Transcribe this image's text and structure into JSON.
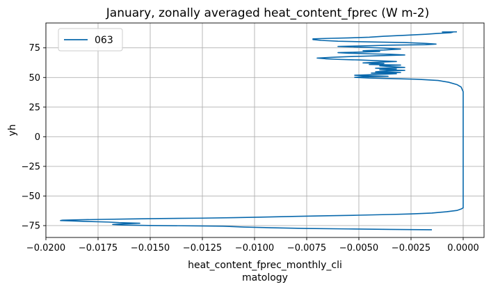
{
  "chart_data": {
    "type": "line",
    "title": "January, zonally averaged heat_content_fprec (W m-2)",
    "xlabel_lines": [
      "heat_content_fprec_monthly_cli",
      "matology"
    ],
    "ylabel": "yh",
    "xlim": [
      -0.02,
      0.001
    ],
    "ylim": [
      -85,
      96
    ],
    "x_ticks": [
      -0.02,
      -0.0175,
      -0.015,
      -0.0125,
      -0.01,
      -0.0075,
      -0.005,
      -0.0025,
      0.0
    ],
    "x_tick_labels": [
      "−0.0200",
      "−0.0175",
      "−0.0150",
      "−0.0125",
      "−0.0100",
      "−0.0075",
      "−0.0050",
      "−0.0025",
      "0.0000"
    ],
    "y_ticks": [
      -75,
      -50,
      -25,
      0,
      25,
      50,
      75
    ],
    "y_tick_labels": [
      "−75",
      "−50",
      "−25",
      "0",
      "25",
      "50",
      "75"
    ],
    "grid": true,
    "legend_position": "top-left",
    "series": [
      {
        "name": "063",
        "color": "#0868ac",
        "points": [
          [
            -0.0015,
            -78.5
          ],
          [
            -0.0035,
            -78.2
          ],
          [
            -0.0055,
            -77.8
          ],
          [
            -0.0075,
            -77.4
          ],
          [
            -0.0092,
            -76.8
          ],
          [
            -0.0105,
            -76.2
          ],
          [
            -0.0115,
            -75.5
          ],
          [
            -0.013,
            -75.2
          ],
          [
            -0.015,
            -74.9
          ],
          [
            -0.0163,
            -74.5
          ],
          [
            -0.0168,
            -74.0
          ],
          [
            -0.0162,
            -73.5
          ],
          [
            -0.0155,
            -73.0
          ],
          [
            -0.0165,
            -72.5
          ],
          [
            -0.017,
            -72.0
          ],
          [
            -0.018,
            -71.5
          ],
          [
            -0.0188,
            -71.0
          ],
          [
            -0.0193,
            -70.7
          ],
          [
            -0.0192,
            -70.4
          ],
          [
            -0.0185,
            -70.1
          ],
          [
            -0.0175,
            -69.8
          ],
          [
            -0.016,
            -69.4
          ],
          [
            -0.0145,
            -69.0
          ],
          [
            -0.0125,
            -68.7
          ],
          [
            -0.011,
            -68.3
          ],
          [
            -0.0095,
            -67.8
          ],
          [
            -0.008,
            -67.2
          ],
          [
            -0.0065,
            -66.7
          ],
          [
            -0.005,
            -66.2
          ],
          [
            -0.0035,
            -65.6
          ],
          [
            -0.0025,
            -65.1
          ],
          [
            -0.0015,
            -64.4
          ],
          [
            -0.0008,
            -63.3
          ],
          [
            -0.0003,
            -62.2
          ],
          [
            -0.0001,
            -61.0
          ],
          [
            0.0,
            -60.0
          ],
          [
            0.0,
            -40.0
          ],
          [
            0.0,
            -20.0
          ],
          [
            0.0,
            0.0
          ],
          [
            0.0,
            20.0
          ],
          [
            0.0,
            38.0
          ],
          [
            -0.0001,
            42.0
          ],
          [
            -0.0003,
            44.0
          ],
          [
            -0.0007,
            46.0
          ],
          [
            -0.0012,
            47.5
          ],
          [
            -0.0022,
            48.5
          ],
          [
            -0.0035,
            49.1
          ],
          [
            -0.0045,
            49.5
          ],
          [
            -0.0052,
            50.1
          ],
          [
            -0.0048,
            50.5
          ],
          [
            -0.0036,
            51.0
          ],
          [
            -0.0048,
            51.4
          ],
          [
            -0.0052,
            51.9
          ],
          [
            -0.0042,
            52.5
          ],
          [
            -0.0032,
            53.2
          ],
          [
            -0.0044,
            53.7
          ],
          [
            -0.003,
            54.2
          ],
          [
            -0.0042,
            54.8
          ],
          [
            -0.0036,
            55.5
          ],
          [
            -0.0028,
            56.0
          ],
          [
            -0.004,
            56.5
          ],
          [
            -0.0032,
            57.2
          ],
          [
            -0.0042,
            57.8
          ],
          [
            -0.0028,
            58.5
          ],
          [
            -0.0035,
            59.2
          ],
          [
            -0.004,
            59.8
          ],
          [
            -0.003,
            60.5
          ],
          [
            -0.0045,
            61.0
          ],
          [
            -0.0038,
            61.8
          ],
          [
            -0.0048,
            62.3
          ],
          [
            -0.004,
            63.0
          ],
          [
            -0.0032,
            63.5
          ],
          [
            -0.0042,
            64.2
          ],
          [
            -0.005,
            64.8
          ],
          [
            -0.006,
            65.3
          ],
          [
            -0.0066,
            65.8
          ],
          [
            -0.007,
            66.4
          ],
          [
            -0.0063,
            67.0
          ],
          [
            -0.0055,
            67.6
          ],
          [
            -0.0048,
            68.0
          ],
          [
            -0.0038,
            68.5
          ],
          [
            -0.0028,
            69.0
          ],
          [
            -0.0035,
            69.6
          ],
          [
            -0.0045,
            70.0
          ],
          [
            -0.0055,
            70.5
          ],
          [
            -0.006,
            71.0
          ],
          [
            -0.0048,
            71.5
          ],
          [
            -0.004,
            72.0
          ],
          [
            -0.0048,
            72.6
          ],
          [
            -0.0038,
            73.2
          ],
          [
            -0.003,
            74.0
          ],
          [
            -0.0038,
            74.8
          ],
          [
            -0.0048,
            75.5
          ],
          [
            -0.006,
            76.2
          ],
          [
            -0.0045,
            76.8
          ],
          [
            -0.0035,
            77.3
          ],
          [
            -0.0018,
            77.7
          ],
          [
            -0.0013,
            78.2
          ],
          [
            -0.0018,
            78.8
          ],
          [
            -0.0028,
            79.5
          ],
          [
            -0.0045,
            80.0
          ],
          [
            -0.006,
            80.6
          ],
          [
            -0.0068,
            81.3
          ],
          [
            -0.0072,
            82.0
          ],
          [
            -0.0072,
            82.6
          ],
          [
            -0.0065,
            83.0
          ],
          [
            -0.0055,
            83.4
          ],
          [
            -0.0045,
            84.0
          ],
          [
            -0.0038,
            84.8
          ],
          [
            -0.0028,
            85.6
          ],
          [
            -0.0018,
            86.5
          ],
          [
            -0.0012,
            87.2
          ],
          [
            -0.0006,
            87.8
          ],
          [
            -0.0005,
            88.2
          ],
          [
            -0.001,
            88.4
          ],
          [
            -0.0003,
            88.5
          ]
        ]
      }
    ]
  }
}
